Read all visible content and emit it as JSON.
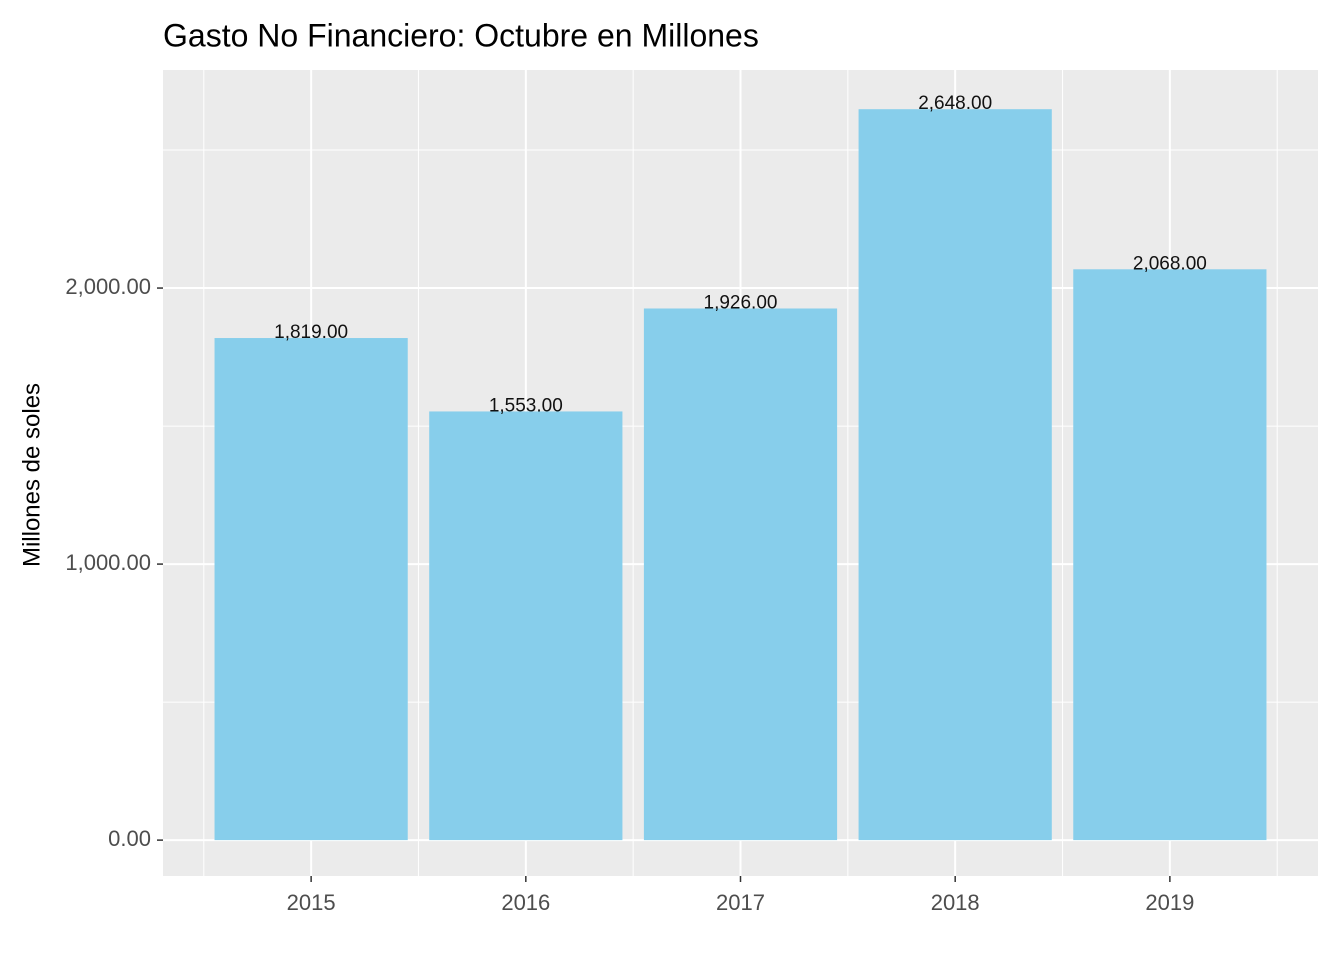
{
  "chart_data": {
    "type": "bar",
    "title": "Gasto No Financiero: Octubre  en Millones",
    "y_label": "Millones de soles",
    "categories": [
      "2015",
      "2016",
      "2017",
      "2018",
      "2019"
    ],
    "values": [
      1819,
      1553,
      1926,
      2648,
      2068
    ],
    "value_labels": [
      "1,819.00",
      "1,553.00",
      "1,926.00",
      "2,648.00",
      "2,068.00"
    ],
    "color": "#87ceeb",
    "ylim": [
      -130,
      2790
    ],
    "yticks": [
      {
        "value": 0,
        "label": "0.00"
      },
      {
        "value": 1000,
        "label": "1,000.00"
      },
      {
        "value": 2000,
        "label": "2,000.00"
      }
    ],
    "y_minor_ticks": [
      500,
      1500,
      2500
    ],
    "grid": true
  }
}
